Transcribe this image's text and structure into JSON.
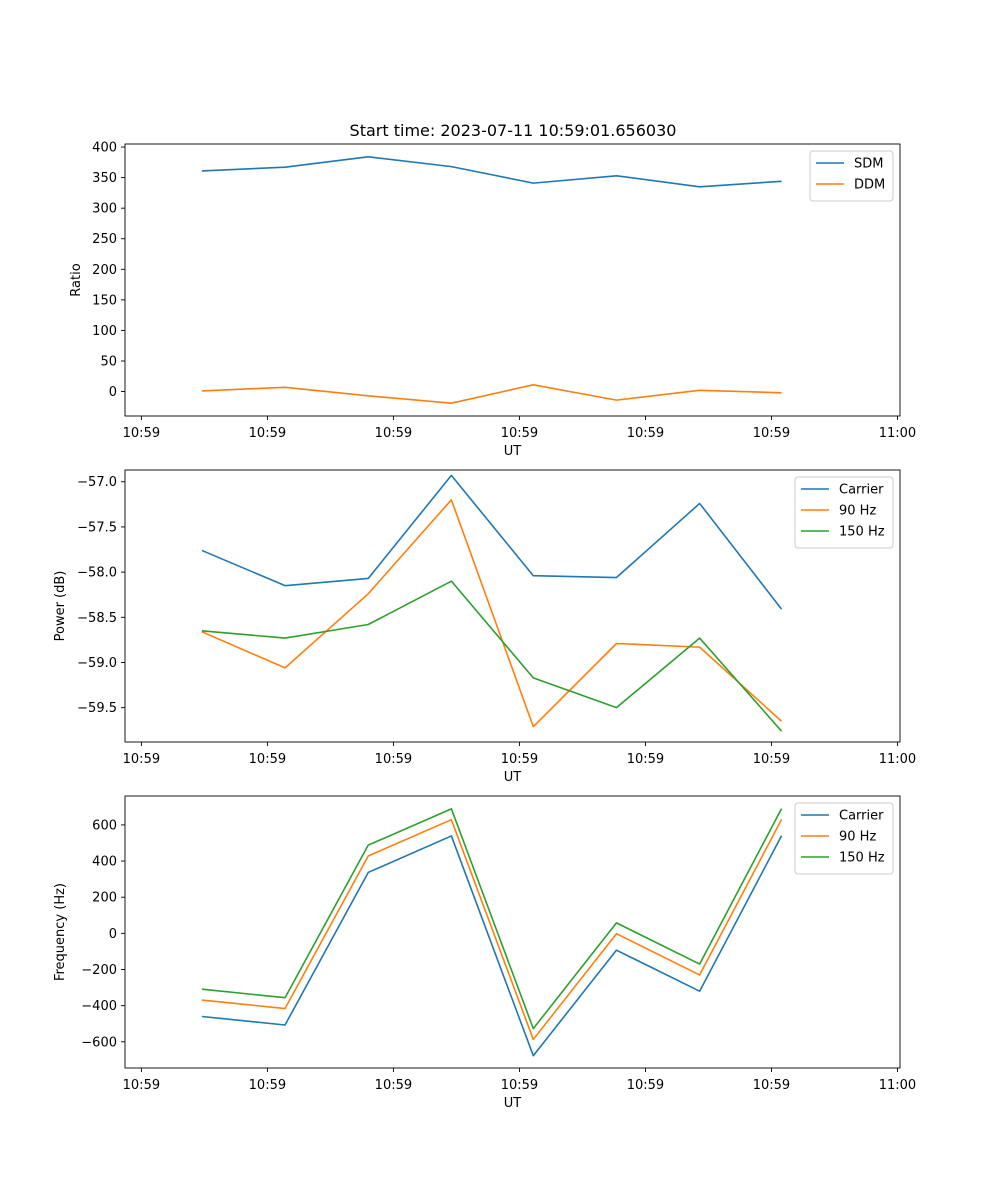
{
  "chart_data": [
    {
      "type": "line",
      "title": "Start time: 2023-07-11 10:59:01.656030",
      "xlabel": "UT",
      "ylabel": "Ratio",
      "xticks": [
        "10:59",
        "10:59",
        "10:59",
        "10:59",
        "10:59",
        "10:59",
        "11:00"
      ],
      "xtick_positions": [
        0.0,
        1.0,
        2.0,
        3.0,
        4.0,
        5.0,
        6.0
      ],
      "x": [
        0.48,
        1.14,
        1.8,
        2.46,
        3.11,
        3.77,
        4.43,
        5.08
      ],
      "xlim": [
        -0.13,
        6.02
      ],
      "ylim": [
        -40,
        405
      ],
      "yticks": [
        0,
        50,
        100,
        150,
        200,
        250,
        300,
        350,
        400
      ],
      "legend": "top-right",
      "series": [
        {
          "name": "SDM",
          "color": "#1f77b4",
          "values": [
            361,
            367,
            384,
            368,
            341,
            353,
            335,
            344
          ]
        },
        {
          "name": "DDM",
          "color": "#ff7f0e",
          "values": [
            1,
            7,
            -7,
            -19,
            11,
            -14,
            2,
            -2
          ]
        }
      ]
    },
    {
      "type": "line",
      "title": "",
      "xlabel": "UT",
      "ylabel": "Power (dB)",
      "xticks": [
        "10:59",
        "10:59",
        "10:59",
        "10:59",
        "10:59",
        "10:59",
        "11:00"
      ],
      "xtick_positions": [
        0.0,
        1.0,
        2.0,
        3.0,
        4.0,
        5.0,
        6.0
      ],
      "x": [
        0.48,
        1.14,
        1.8,
        2.46,
        3.11,
        3.77,
        4.43,
        5.08
      ],
      "xlim": [
        -0.13,
        6.02
      ],
      "ylim": [
        -59.88,
        -56.87
      ],
      "yticks": [
        -57.0,
        -57.5,
        -58.0,
        -58.5,
        -59.0,
        -59.5
      ],
      "ytick_labels": [
        "−57.0",
        "−57.5",
        "−58.0",
        "−58.5",
        "−59.0",
        "−59.5"
      ],
      "legend": "top-right",
      "series": [
        {
          "name": "Carrier",
          "color": "#1f77b4",
          "values": [
            -57.76,
            -58.15,
            -58.07,
            -56.93,
            -58.04,
            -58.06,
            -57.24,
            -58.41
          ]
        },
        {
          "name": "90 Hz",
          "color": "#ff7f0e",
          "values": [
            -58.66,
            -59.06,
            -58.24,
            -57.2,
            -59.71,
            -58.79,
            -58.83,
            -59.65
          ]
        },
        {
          "name": "150 Hz",
          "color": "#2ca02c",
          "values": [
            -58.65,
            -58.73,
            -58.58,
            -58.1,
            -59.17,
            -59.5,
            -58.73,
            -59.76
          ]
        }
      ]
    },
    {
      "type": "line",
      "title": "",
      "xlabel": "UT",
      "ylabel": "Frequency (Hz)",
      "xticks": [
        "10:59",
        "10:59",
        "10:59",
        "10:59",
        "10:59",
        "10:59",
        "11:00"
      ],
      "xtick_positions": [
        0.0,
        1.0,
        2.0,
        3.0,
        4.0,
        5.0,
        6.0
      ],
      "x": [
        0.48,
        1.14,
        1.8,
        2.46,
        3.11,
        3.77,
        4.43,
        5.08
      ],
      "xlim": [
        -0.13,
        6.02
      ],
      "ylim": [
        -745,
        760
      ],
      "yticks": [
        -600,
        -400,
        -200,
        0,
        200,
        400,
        600
      ],
      "ytick_labels": [
        "−600",
        "−400",
        "−200",
        "0",
        "200",
        "400",
        "600"
      ],
      "legend": "top-right",
      "series": [
        {
          "name": "Carrier",
          "color": "#1f77b4",
          "values": [
            -460,
            -507,
            337,
            539,
            -677,
            -93,
            -320,
            540
          ]
        },
        {
          "name": "90 Hz",
          "color": "#ff7f0e",
          "values": [
            -369,
            -416,
            428,
            629,
            -587,
            -2,
            -230,
            630
          ]
        },
        {
          "name": "150 Hz",
          "color": "#2ca02c",
          "values": [
            -309,
            -356,
            488,
            689,
            -527,
            58,
            -170,
            690
          ]
        }
      ]
    }
  ]
}
